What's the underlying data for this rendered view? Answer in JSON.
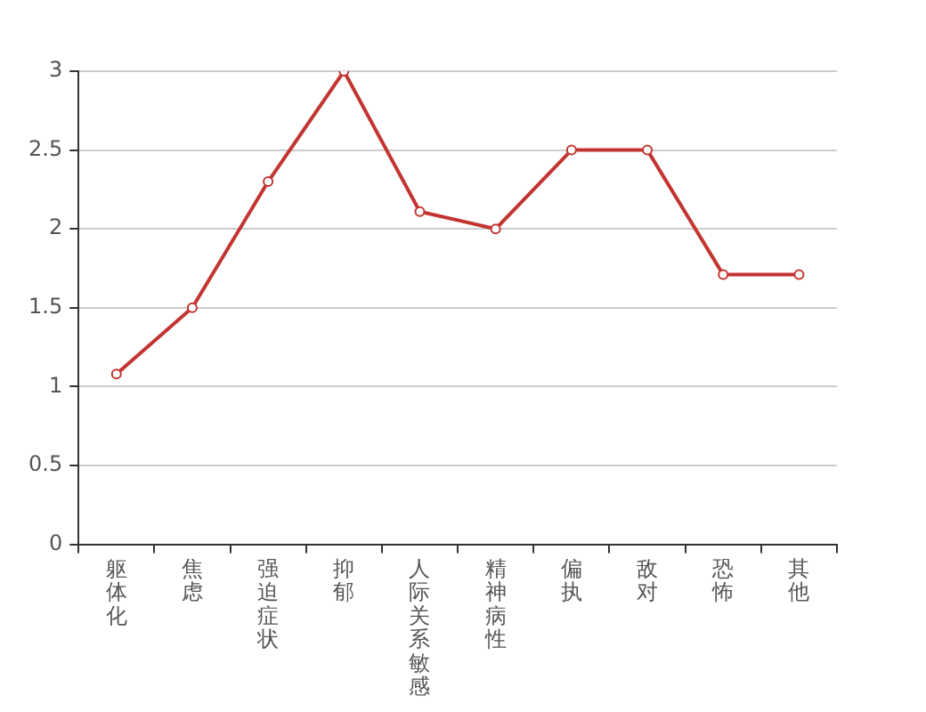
{
  "chart_data": {
    "type": "line",
    "categories": [
      "躯体化",
      "焦虑",
      "强迫症状",
      "抑郁",
      "人际关系敏感",
      "精神病性",
      "偏执",
      "敌对",
      "恐怖",
      "其他"
    ],
    "values": [
      1.08,
      1.5,
      2.3,
      3.0,
      2.11,
      2.0,
      2.5,
      2.5,
      1.71,
      1.71
    ],
    "color": "#c23531",
    "ylim": [
      0,
      3
    ],
    "yticks": [
      0,
      0.5,
      1,
      1.5,
      2,
      2.5,
      3
    ],
    "grid": "y",
    "marker": "circle"
  }
}
